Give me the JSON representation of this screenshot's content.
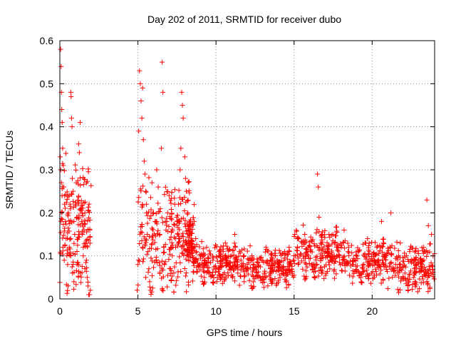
{
  "chart_data": {
    "type": "scatter",
    "title": "Day 202 of 2011, SRMTID for receiver dubo",
    "xlabel": "GPS time / hours",
    "ylabel": "SRMTID / TECUs",
    "xlim": [
      0,
      24
    ],
    "ylim": [
      0,
      0.6
    ],
    "x_ticks": [
      0,
      5,
      10,
      15,
      20
    ],
    "x_tick_labels": [
      "0",
      "5",
      "10",
      "15",
      "20"
    ],
    "y_ticks": [
      0,
      0.1,
      0.2,
      0.3,
      0.4,
      0.5,
      0.6
    ],
    "y_tick_labels": [
      "0",
      "0.1",
      "0.2",
      "0.3",
      "0.4",
      "0.5",
      "0.6"
    ],
    "grid": true,
    "marker": "+",
    "series": [
      {
        "name": "SRMTID",
        "color": "#ff0000",
        "points": [
          [
            0.05,
            0.58
          ],
          [
            0.08,
            0.54
          ],
          [
            0.1,
            0.48
          ],
          [
            0.12,
            0.44
          ],
          [
            0.15,
            0.41
          ],
          [
            0.03,
            0.33
          ],
          [
            0.06,
            0.3
          ],
          [
            0.1,
            0.27
          ],
          [
            0.14,
            0.24
          ],
          [
            0.18,
            0.35
          ],
          [
            0.22,
            0.31
          ],
          [
            0.25,
            0.26
          ],
          [
            0.3,
            0.22
          ],
          [
            0.35,
            0.18
          ],
          [
            0.4,
            0.14
          ],
          [
            0.45,
            0.1
          ],
          [
            0.5,
            0.08
          ],
          [
            0.2,
            0.12
          ],
          [
            0.28,
            0.09
          ],
          [
            0.55,
            0.2
          ],
          [
            0.6,
            0.24
          ],
          [
            0.65,
            0.22
          ],
          [
            0.7,
            0.48
          ],
          [
            0.72,
            0.47
          ],
          [
            0.75,
            0.42
          ],
          [
            0.78,
            0.4
          ],
          [
            0.8,
            0.28
          ],
          [
            0.85,
            0.25
          ],
          [
            0.9,
            0.18
          ],
          [
            0.95,
            0.15
          ],
          [
            0.6,
            0.12
          ],
          [
            0.7,
            0.1
          ],
          [
            0.8,
            0.06
          ],
          [
            0.9,
            0.04
          ],
          [
            1.0,
            0.22
          ],
          [
            1.05,
            0.27
          ],
          [
            1.1,
            0.19
          ],
          [
            1.2,
            0.36
          ],
          [
            1.25,
            0.34
          ],
          [
            1.3,
            0.41
          ],
          [
            1.35,
            0.21
          ],
          [
            1.4,
            0.18
          ],
          [
            1.45,
            0.15
          ],
          [
            1.5,
            0.12
          ],
          [
            1.1,
            0.08
          ],
          [
            1.3,
            0.06
          ],
          [
            1.55,
            0.16
          ],
          [
            1.6,
            0.2
          ],
          [
            1.65,
            0.13
          ],
          [
            1.7,
            0.09
          ],
          [
            1.75,
            0.05
          ],
          [
            1.8,
            0.03
          ],
          [
            1.85,
            0.01
          ],
          [
            1.9,
            0.01
          ],
          [
            1.95,
            0.02
          ],
          [
            1.6,
            0.07
          ],
          [
            1.5,
            0.1
          ],
          [
            4.95,
            0.02
          ],
          [
            5.0,
            0.08
          ],
          [
            5.05,
            0.39
          ],
          [
            5.1,
            0.53
          ],
          [
            5.15,
            0.5
          ],
          [
            5.2,
            0.46
          ],
          [
            5.25,
            0.42
          ],
          [
            5.3,
            0.49
          ],
          [
            5.35,
            0.37
          ],
          [
            5.4,
            0.32
          ],
          [
            5.45,
            0.29
          ],
          [
            5.5,
            0.25
          ],
          [
            5.55,
            0.22
          ],
          [
            5.6,
            0.15
          ],
          [
            5.65,
            0.11
          ],
          [
            5.7,
            0.07
          ],
          [
            5.75,
            0.04
          ],
          [
            5.8,
            0.02
          ],
          [
            5.5,
            0.05
          ],
          [
            5.3,
            0.12
          ],
          [
            5.9,
            0.27
          ],
          [
            6.0,
            0.2
          ],
          [
            6.1,
            0.18
          ],
          [
            6.2,
            0.3
          ],
          [
            6.3,
            0.26
          ],
          [
            6.4,
            0.15
          ],
          [
            6.5,
            0.35
          ],
          [
            6.55,
            0.55
          ],
          [
            6.6,
            0.48
          ],
          [
            6.65,
            0.12
          ],
          [
            6.7,
            0.08
          ],
          [
            6.8,
            0.16
          ],
          [
            6.9,
            0.2
          ],
          [
            7.0,
            0.24
          ],
          [
            7.1,
            0.12
          ],
          [
            7.2,
            0.1
          ],
          [
            7.3,
            0.06
          ],
          [
            7.4,
            0.14
          ],
          [
            7.5,
            0.18
          ],
          [
            7.6,
            0.22
          ],
          [
            7.7,
            0.3
          ],
          [
            7.75,
            0.35
          ],
          [
            7.8,
            0.48
          ],
          [
            7.85,
            0.45
          ],
          [
            7.9,
            0.42
          ],
          [
            8.0,
            0.33
          ],
          [
            8.05,
            0.28
          ],
          [
            8.1,
            0.25
          ],
          [
            8.2,
            0.2
          ],
          [
            8.3,
            0.16
          ],
          [
            8.4,
            0.12
          ],
          [
            8.5,
            0.1
          ],
          [
            8.6,
            0.18
          ],
          [
            8.7,
            0.14
          ],
          [
            8.8,
            0.09
          ],
          [
            9.0,
            0.1
          ],
          [
            9.2,
            0.08
          ],
          [
            9.4,
            0.12
          ],
          [
            9.6,
            0.06
          ],
          [
            9.8,
            0.09
          ],
          [
            10.0,
            0.07
          ],
          [
            10.2,
            0.11
          ],
          [
            10.4,
            0.05
          ],
          [
            10.6,
            0.13
          ],
          [
            10.8,
            0.08
          ],
          [
            11.0,
            0.1
          ],
          [
            11.2,
            0.15
          ],
          [
            11.4,
            0.06
          ],
          [
            11.6,
            0.09
          ],
          [
            11.8,
            0.04
          ],
          [
            12.0,
            0.08
          ],
          [
            12.3,
            0.1
          ],
          [
            12.6,
            0.06
          ],
          [
            12.9,
            0.09
          ],
          [
            13.2,
            0.12
          ],
          [
            13.5,
            0.07
          ],
          [
            13.8,
            0.1
          ],
          [
            14.1,
            0.05
          ],
          [
            14.4,
            0.11
          ],
          [
            14.7,
            0.08
          ],
          [
            15.0,
            0.09
          ],
          [
            15.3,
            0.14
          ],
          [
            15.6,
            0.1
          ],
          [
            15.9,
            0.12
          ],
          [
            16.2,
            0.08
          ],
          [
            16.5,
            0.29
          ],
          [
            16.55,
            0.26
          ],
          [
            16.6,
            0.19
          ],
          [
            16.8,
            0.15
          ],
          [
            17.0,
            0.11
          ],
          [
            17.3,
            0.09
          ],
          [
            17.6,
            0.13
          ],
          [
            17.9,
            0.1
          ],
          [
            18.2,
            0.16
          ],
          [
            18.5,
            0.12
          ],
          [
            18.8,
            0.08
          ],
          [
            19.1,
            0.11
          ],
          [
            19.4,
            0.07
          ],
          [
            19.7,
            0.14
          ],
          [
            20.0,
            0.09
          ],
          [
            20.3,
            0.12
          ],
          [
            20.6,
            0.18
          ],
          [
            20.9,
            0.1
          ],
          [
            21.2,
            0.2
          ],
          [
            21.5,
            0.08
          ],
          [
            21.8,
            0.13
          ],
          [
            22.1,
            0.06
          ],
          [
            22.4,
            0.11
          ],
          [
            22.7,
            0.09
          ],
          [
            23.0,
            0.07
          ],
          [
            23.3,
            0.12
          ],
          [
            23.5,
            0.23
          ],
          [
            23.6,
            0.17
          ],
          [
            23.8,
            0.15
          ],
          [
            23.9,
            0.1
          ]
        ],
        "dense_bands": [
          {
            "x_range": [
              0.0,
              2.0
            ],
            "y_range": [
              0.0,
              0.36
            ],
            "count": 160
          },
          {
            "x_range": [
              5.0,
              8.6
            ],
            "y_range": [
              0.0,
              0.3
            ],
            "count": 260
          },
          {
            "x_range": [
              8.0,
              8.6
            ],
            "y_range": [
              0.08,
              0.2
            ],
            "count": 60
          },
          {
            "x_range": [
              8.5,
              11.5
            ],
            "y_range": [
              0.03,
              0.14
            ],
            "count": 200
          },
          {
            "x_range": [
              11.5,
              15.0
            ],
            "y_range": [
              0.02,
              0.13
            ],
            "count": 220
          },
          {
            "x_range": [
              15.0,
              18.0
            ],
            "y_range": [
              0.04,
              0.18
            ],
            "count": 200
          },
          {
            "x_range": [
              18.0,
              21.0
            ],
            "y_range": [
              0.03,
              0.15
            ],
            "count": 180
          },
          {
            "x_range": [
              21.0,
              24.0
            ],
            "y_range": [
              0.01,
              0.14
            ],
            "count": 190
          }
        ]
      }
    ]
  }
}
